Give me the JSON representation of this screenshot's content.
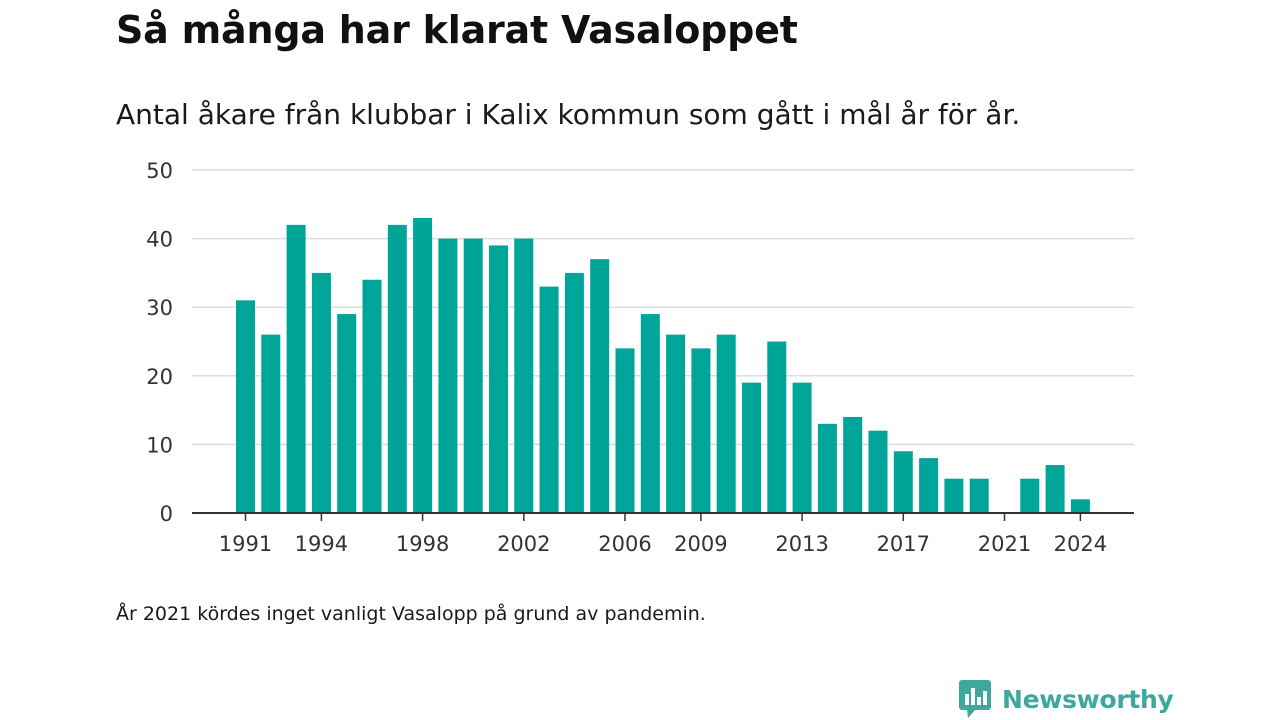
{
  "title": "Så många har klarat Vasaloppet",
  "subtitle": "Antal åkare från klubbar i Kalix kommun som gått i mål år för år.",
  "note": "År 2021 kördes inget vanligt Vasalopp på grund av pandemin.",
  "brand": {
    "name": "Newsworthy",
    "icon": "newsworthy-logo-icon",
    "color": "#3fa89c"
  },
  "chart_data": {
    "type": "bar",
    "bar_color": "#00a59a",
    "x": [
      1991,
      1992,
      1993,
      1994,
      1995,
      1996,
      1997,
      1998,
      1999,
      2000,
      2001,
      2002,
      2003,
      2004,
      2005,
      2006,
      2007,
      2008,
      2009,
      2010,
      2011,
      2012,
      2013,
      2014,
      2015,
      2016,
      2017,
      2018,
      2019,
      2020,
      2021,
      2022,
      2023,
      2024
    ],
    "values": [
      31,
      26,
      42,
      35,
      29,
      34,
      42,
      43,
      40,
      40,
      39,
      40,
      33,
      35,
      37,
      24,
      29,
      26,
      24,
      26,
      19,
      25,
      19,
      13,
      14,
      12,
      9,
      8,
      5,
      5,
      0,
      5,
      7,
      2
    ],
    "x_tick_labels": [
      1991,
      1994,
      1998,
      2002,
      2006,
      2009,
      2013,
      2017,
      2021,
      2024
    ],
    "y_ticks": [
      0,
      10,
      20,
      30,
      40,
      50
    ],
    "ylim": [
      0,
      50
    ],
    "grid": true,
    "legend": "none"
  }
}
